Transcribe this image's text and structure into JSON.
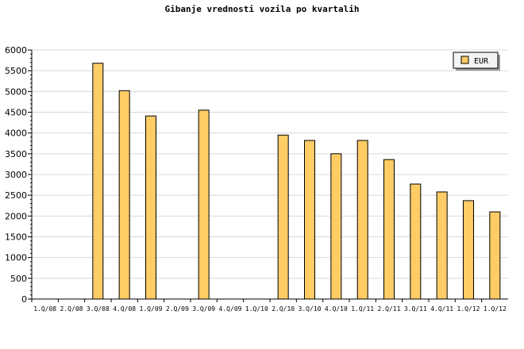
{
  "chart_data": {
    "type": "bar",
    "title": "Gibanje vrednosti vozila po kvartalih",
    "xlabel": "",
    "ylabel": "",
    "ylim": [
      0,
      6000
    ],
    "yticks": [
      0,
      500,
      1000,
      1500,
      2000,
      2500,
      3000,
      3500,
      4000,
      4500,
      5000,
      5500,
      6000
    ],
    "grid": true,
    "legend_position": "top-right",
    "categories": [
      "1.Q/08",
      "2.Q/08",
      "3.Q/08",
      "4.Q/08",
      "1.Q/09",
      "2.Q/09",
      "3.Q/09",
      "4.Q/09",
      "1.Q/10",
      "2.Q/10",
      "3.Q/10",
      "4.Q/10",
      "1.Q/11",
      "2.Q/11",
      "3.Q/11",
      "4.Q/11",
      "1.Q/12",
      "1.Q/12"
    ],
    "series": [
      {
        "name": "EUR",
        "color": "#ffcc66",
        "values": [
          null,
          null,
          5680,
          5020,
          4410,
          null,
          4550,
          null,
          null,
          3950,
          3820,
          3500,
          3820,
          3360,
          2770,
          2580,
          2370,
          2100
        ]
      }
    ]
  }
}
